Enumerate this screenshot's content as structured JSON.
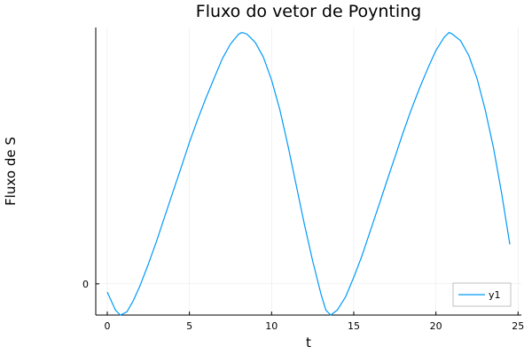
{
  "chart_data": {
    "type": "line",
    "title": "Fluxo do vetor de Poynting",
    "xlabel": "t",
    "ylabel": "Fluxo de S",
    "xlim": [
      -0.7,
      25.2
    ],
    "ylim": [
      -1.9,
      15.6
    ],
    "x_ticks": [
      0,
      5,
      10,
      15,
      20,
      25
    ],
    "y_ticks": [
      0
    ],
    "grid": true,
    "legend": "bottom-right",
    "series": [
      {
        "name": "y1",
        "color": "#009AF9",
        "x": [
          0,
          0.5,
          0.8,
          1.2,
          1.6,
          2,
          2.5,
          3,
          3.5,
          4,
          4.5,
          5,
          5.5,
          6,
          6.5,
          7,
          7.5,
          8,
          8.2,
          8.5,
          9,
          9.5,
          10,
          10.5,
          11,
          11.5,
          12,
          12.5,
          13,
          13.3,
          13.6,
          14,
          14.5,
          15,
          15.5,
          16,
          16.5,
          17,
          17.5,
          18,
          18.5,
          19,
          19.5,
          20,
          20.5,
          20.8,
          21,
          21.5,
          22,
          22.5,
          23,
          23.5,
          24,
          24.5
        ],
        "y": [
          -0.5,
          -1.6,
          -1.9,
          -1.7,
          -1.0,
          -0.1,
          1.2,
          2.6,
          4.1,
          5.6,
          7.1,
          8.6,
          10.0,
          11.3,
          12.5,
          13.7,
          14.6,
          15.2,
          15.3,
          15.2,
          14.7,
          13.8,
          12.4,
          10.6,
          8.4,
          6.0,
          3.6,
          1.4,
          -0.6,
          -1.6,
          -1.9,
          -1.6,
          -0.8,
          0.4,
          1.7,
          3.2,
          4.7,
          6.2,
          7.7,
          9.2,
          10.6,
          11.9,
          13.1,
          14.2,
          15.0,
          15.3,
          15.2,
          14.8,
          13.9,
          12.5,
          10.6,
          8.3,
          5.5,
          2.4
        ]
      }
    ]
  }
}
